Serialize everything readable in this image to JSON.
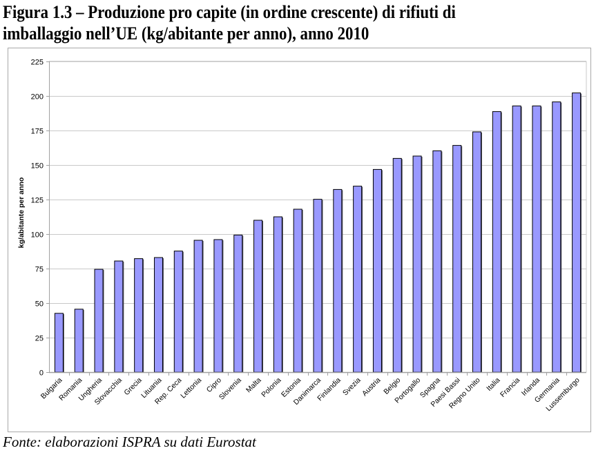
{
  "title": {
    "line1": "Figura 1.3  – Produzione pro capite (in ordine crescente) di rifiuti di",
    "line2": "imballaggio nell’UE (kg/abitante per anno), anno 2010"
  },
  "source": "Fonte: elaborazioni ISPRA su dati Eurostat",
  "colors": {
    "bar_fill": "#9999FF",
    "bar_stroke": "#000000",
    "gridline": "#C8C8C8",
    "axis": "#A0A0A0"
  },
  "chart_data": {
    "type": "bar",
    "title": "Figura 1.3 – Produzione pro capite (in ordine crescente) di rifiuti di imballaggio nell’UE (kg/abitante per anno), anno 2010",
    "xlabel": "",
    "ylabel": "kg/abitante per anno",
    "ylim": [
      0,
      225
    ],
    "yticks": [
      0,
      25,
      50,
      75,
      100,
      125,
      150,
      175,
      200,
      225
    ],
    "grid": true,
    "legend": "none",
    "categories": [
      "Bulgaria",
      "Romania",
      "Ungheria",
      "Slovacchia",
      "Grecia",
      "Lituania",
      "Rep. Ceca",
      "Lettonia",
      "Cipro",
      "Slovenia",
      "Malta",
      "Polonia",
      "Estonia",
      "Danimarca",
      "Finlandia",
      "Svezia",
      "Austria",
      "Belgio",
      "Portogallo",
      "Spagna",
      "Paesi Bassi",
      "Regno Unito",
      "Italia",
      "Francia",
      "Irlanda",
      "Germania",
      "Lussemburgo"
    ],
    "values": [
      42.6,
      45.6,
      74.5,
      80.5,
      82.2,
      83.0,
      87.7,
      95.5,
      96.0,
      99.3,
      110.0,
      112.5,
      118.0,
      125.2,
      132.3,
      134.7,
      146.8,
      154.8,
      156.5,
      160.3,
      164.2,
      174.0,
      188.7,
      192.8,
      192.8,
      195.7,
      202.2
    ]
  }
}
